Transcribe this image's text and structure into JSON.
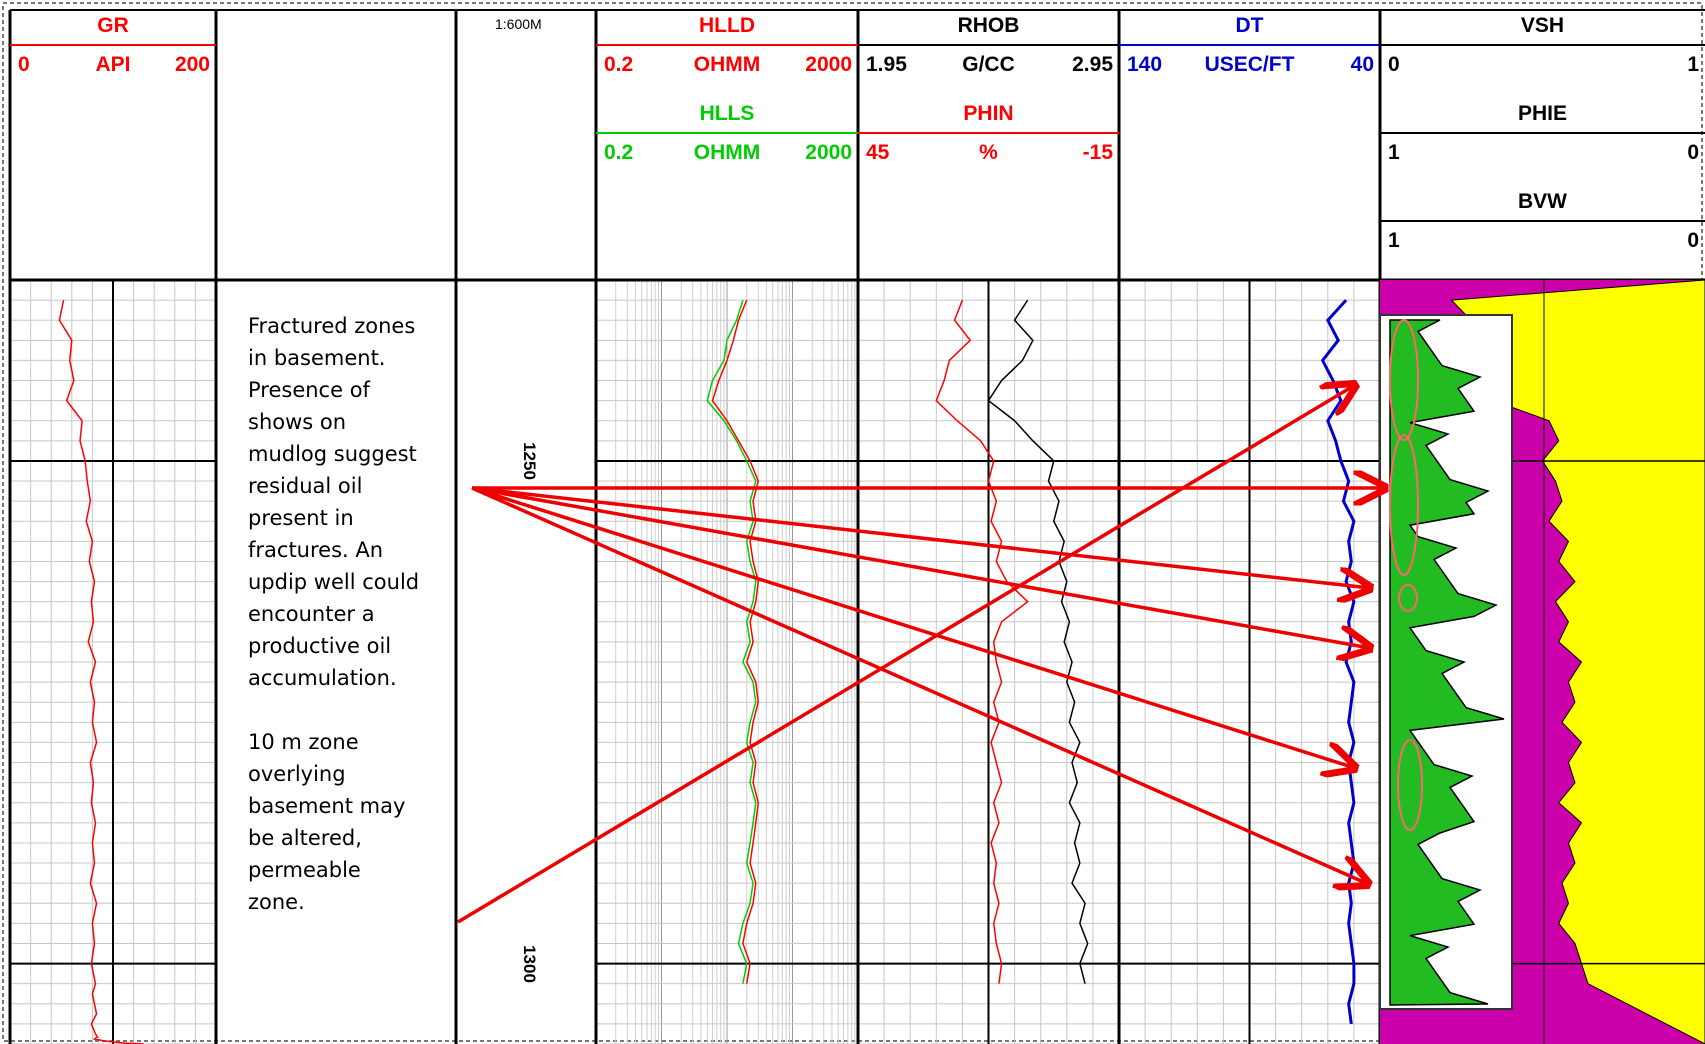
{
  "scale_label": "1:600M",
  "track_headers": [
    {
      "id": "gr",
      "rows": [
        {
          "name": "GR",
          "color": "#ff0000",
          "left": "0",
          "unit": "API",
          "right": "200"
        }
      ]
    },
    {
      "id": "res",
      "rows": [
        {
          "name": "HLLD",
          "color": "#ff0000",
          "left": "0.2",
          "unit": "OHMM",
          "right": "2000"
        },
        {
          "name": "HLLS",
          "color": "#00cc00",
          "left": "0.2",
          "unit": "OHMM",
          "right": "2000"
        }
      ]
    },
    {
      "id": "poro",
      "rows": [
        {
          "name": "RHOB",
          "color": "#000000",
          "left": "1.95",
          "unit": "G/CC",
          "right": "2.95"
        },
        {
          "name": "PHIN",
          "color": "#ff0000",
          "left": "45",
          "unit": "%",
          "right": "-15"
        }
      ]
    },
    {
      "id": "sonic",
      "rows": [
        {
          "name": "DT",
          "color": "#0000cc",
          "left": "140",
          "unit": "USEC/FT",
          "right": "40"
        }
      ]
    },
    {
      "id": "vol",
      "rows": [
        {
          "name": "VSH",
          "color": "#000000",
          "left": "0",
          "unit": "",
          "right": "1"
        },
        {
          "name": "PHIE",
          "color": "#000000",
          "left": "1",
          "unit": "",
          "right": "0"
        },
        {
          "name": "BVW",
          "color": "#000000",
          "left": "1",
          "unit": "",
          "right": "0"
        }
      ]
    }
  ],
  "depth_labels": [
    "1250",
    "1300"
  ],
  "annotation": {
    "paragraph1": "Fractured zones in basement. Presence of shows on mudlog suggest residual oil present in fractures. An updip well could encounter a productive oil accumulation.",
    "paragraph2": "10 m zone overlying basement may be altered, permeable zone."
  },
  "colors": {
    "shale": "#cc00aa",
    "sand": "#ffff00",
    "arrow": "#ee0000",
    "inset_fill": "#22bb22"
  },
  "chart_data": [
    {
      "type": "line",
      "title": "GR",
      "xlabel": "API",
      "xlim": [
        0,
        200
      ],
      "ylim": [
        1232,
        1308
      ],
      "y_direction": "down",
      "series": [
        {
          "name": "GR",
          "color": "#ff0000",
          "x": [
            52,
            48,
            60,
            58,
            62,
            55,
            70,
            68,
            73,
            75,
            78,
            74,
            80,
            77,
            82,
            79,
            81,
            76,
            83,
            78,
            82,
            80,
            84,
            78,
            81,
            79,
            83,
            80,
            82,
            78,
            84,
            80,
            82,
            79,
            81,
            83,
            80,
            82,
            84,
            79,
            81,
            83,
            85,
            82,
            92,
            110,
            130
          ],
          "y": [
            1234,
            1236,
            1238,
            1240,
            1242,
            1244,
            1246,
            1248,
            1250,
            1252,
            1254,
            1256,
            1258,
            1260,
            1262,
            1264,
            1266,
            1268,
            1270,
            1272,
            1274,
            1276,
            1278,
            1280,
            1282,
            1284,
            1286,
            1288,
            1290,
            1292,
            1294,
            1296,
            1298,
            1300,
            1301,
            1302,
            1303,
            1304,
            1305,
            1306,
            1306.5,
            1307,
            1307.3,
            1307.5,
            1307.7,
            1307.9,
            1308
          ]
        }
      ]
    },
    {
      "type": "line",
      "title": "HLLD / HLLS",
      "xlabel": "OHMM",
      "xlim": [
        0.2,
        2000
      ],
      "log_x": true,
      "ylim": [
        1232,
        1308
      ],
      "y_direction": "down",
      "series": [
        {
          "name": "HLLD",
          "color": "#ff0000",
          "x": [
            40,
            30,
            25,
            20,
            15,
            12,
            20,
            30,
            45,
            60,
            50,
            55,
            45,
            50,
            60,
            55,
            45,
            50,
            40,
            55,
            60,
            50,
            45,
            55,
            50,
            60,
            55,
            50,
            45,
            55,
            50,
            40,
            35,
            45,
            40
          ],
          "y": [
            1234,
            1236,
            1238,
            1240,
            1242,
            1244,
            1246,
            1248,
            1250,
            1252,
            1254,
            1256,
            1258,
            1260,
            1262,
            1264,
            1266,
            1268,
            1270,
            1272,
            1274,
            1276,
            1278,
            1280,
            1282,
            1284,
            1286,
            1288,
            1290,
            1292,
            1294,
            1296,
            1298,
            1300,
            1302
          ]
        },
        {
          "name": "HLLS",
          "color": "#00cc00",
          "x": [
            35,
            28,
            20,
            18,
            12,
            10,
            18,
            28,
            40,
            55,
            45,
            50,
            40,
            45,
            55,
            50,
            40,
            45,
            35,
            50,
            55,
            45,
            40,
            50,
            45,
            55,
            50,
            45,
            40,
            50,
            45,
            35,
            30,
            40,
            35
          ],
          "y": [
            1234,
            1236,
            1238,
            1240,
            1242,
            1244,
            1246,
            1248,
            1250,
            1252,
            1254,
            1256,
            1258,
            1260,
            1262,
            1264,
            1266,
            1268,
            1270,
            1272,
            1274,
            1276,
            1278,
            1280,
            1282,
            1284,
            1286,
            1288,
            1290,
            1292,
            1294,
            1296,
            1298,
            1300,
            1302
          ]
        }
      ]
    },
    {
      "type": "line",
      "title": "RHOB / PHIN",
      "xlabel": "G/CC",
      "xlim": [
        1.95,
        2.95
      ],
      "ylim": [
        1232,
        1308
      ],
      "y_direction": "down",
      "series": [
        {
          "name": "RHOB",
          "color": "#000000",
          "x": [
            2.6,
            2.55,
            2.62,
            2.58,
            2.5,
            2.45,
            2.55,
            2.62,
            2.7,
            2.68,
            2.72,
            2.7,
            2.74,
            2.72,
            2.75,
            2.73,
            2.76,
            2.74,
            2.77,
            2.75,
            2.78,
            2.76,
            2.8,
            2.77,
            2.79,
            2.76,
            2.8,
            2.78,
            2.8,
            2.77,
            2.82,
            2.8,
            2.83,
            2.8,
            2.82
          ],
          "y": [
            1234,
            1236,
            1238,
            1240,
            1242,
            1244,
            1246,
            1248,
            1250,
            1252,
            1254,
            1256,
            1258,
            1260,
            1262,
            1264,
            1266,
            1268,
            1270,
            1272,
            1274,
            1276,
            1278,
            1280,
            1282,
            1284,
            1286,
            1288,
            1290,
            1292,
            1294,
            1296,
            1298,
            1300,
            1302
          ]
        },
        {
          "name": "PHIN",
          "color": "#ff0000",
          "x": [
            2.35,
            2.32,
            2.38,
            2.3,
            2.28,
            2.25,
            2.33,
            2.42,
            2.47,
            2.45,
            2.48,
            2.46,
            2.5,
            2.48,
            2.52,
            2.6,
            2.5,
            2.47,
            2.48,
            2.5,
            2.47,
            2.49,
            2.46,
            2.48,
            2.5,
            2.47,
            2.49,
            2.46,
            2.48,
            2.47,
            2.49,
            2.47,
            2.48,
            2.5,
            2.49
          ],
          "y": [
            1234,
            1236,
            1238,
            1240,
            1242,
            1244,
            1246,
            1248,
            1250,
            1252,
            1254,
            1256,
            1258,
            1260,
            1262,
            1264,
            1266,
            1268,
            1270,
            1272,
            1274,
            1276,
            1278,
            1280,
            1282,
            1284,
            1286,
            1288,
            1290,
            1292,
            1294,
            1296,
            1298,
            1300,
            1302
          ]
        }
      ]
    },
    {
      "type": "line",
      "title": "DT",
      "xlabel": "USEC/FT",
      "xlim": [
        140,
        40
      ],
      "ylim": [
        1232,
        1308
      ],
      "y_direction": "down",
      "series": [
        {
          "name": "DT",
          "color": "#0000cc",
          "x": [
            53,
            60,
            56,
            62,
            58,
            55,
            60,
            57,
            55,
            52,
            54,
            50,
            52,
            51,
            53,
            50,
            52,
            51,
            53,
            50,
            51,
            52,
            50,
            52,
            51,
            50,
            52,
            51,
            50,
            52,
            51,
            52,
            51,
            50,
            50,
            52,
            51
          ],
          "y": [
            1234,
            1236,
            1238,
            1240,
            1242,
            1244,
            1246,
            1248,
            1250,
            1252,
            1254,
            1256,
            1258,
            1260,
            1262,
            1264,
            1266,
            1268,
            1270,
            1272,
            1274,
            1276,
            1278,
            1280,
            1282,
            1284,
            1286,
            1288,
            1290,
            1292,
            1294,
            1296,
            1298,
            1300,
            1302,
            1304,
            1306
          ]
        }
      ]
    },
    {
      "type": "area",
      "title": "VSH / PHIE / BVW",
      "xlim": [
        0,
        1
      ],
      "ylim": [
        1232,
        1308
      ],
      "y_direction": "down",
      "series": [
        {
          "name": "VSH",
          "color": "#cc00aa",
          "x": [
            0.22,
            0.28,
            0.34,
            0.38,
            0.4,
            0.35,
            0.52,
            0.55,
            0.5,
            0.54,
            0.56,
            0.52,
            0.58,
            0.55,
            0.6,
            0.54,
            0.58,
            0.55,
            0.62,
            0.58,
            0.6,
            0.56,
            0.62,
            0.58,
            0.6,
            0.55,
            0.62,
            0.58,
            0.6,
            0.56,
            0.58,
            0.55,
            0.6,
            0.62,
            0.64
          ],
          "y": [
            1234,
            1236,
            1238,
            1240,
            1242,
            1244,
            1246,
            1248,
            1250,
            1252,
            1254,
            1256,
            1258,
            1260,
            1262,
            1264,
            1266,
            1268,
            1270,
            1272,
            1274,
            1276,
            1278,
            1280,
            1282,
            1284,
            1286,
            1288,
            1290,
            1292,
            1294,
            1296,
            1298,
            1300,
            1302
          ]
        }
      ]
    }
  ]
}
